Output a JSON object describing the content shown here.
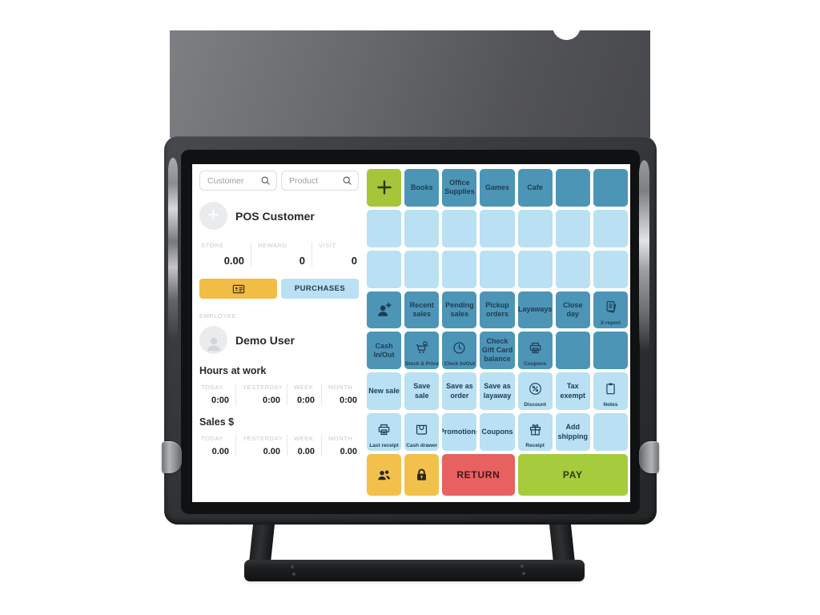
{
  "colors": {
    "dark_button": "#4d95b7",
    "light_button": "#b9e0f3",
    "green_button": "#a5c638",
    "yellow_button": "#f2c14b",
    "red_button": "#e6615f",
    "pay_button": "#a6cb3c",
    "button_text": "#1d3c50",
    "accent_orange": "#f2bd45"
  },
  "left_panel": {
    "customer_search_placeholder": "Customer",
    "product_search_placeholder": "Product",
    "customer_title": "POS Customer",
    "customer_stats": [
      {
        "label": "STORE",
        "value": "0.00"
      },
      {
        "label": "REWARD",
        "value": "0"
      },
      {
        "label": "VISIT",
        "value": "0"
      }
    ],
    "card_button_icon": "id-card-icon",
    "purchases_button_label": "PURCHASES",
    "employee_label": "EMPLOYEE",
    "employee_name": "Demo User",
    "hours_section": {
      "title": "Hours at work",
      "stats": [
        {
          "label": "TODAY",
          "value": "0:00"
        },
        {
          "label": "YESTERDAY",
          "value": "0:00"
        },
        {
          "label": "WEEK",
          "value": "0:00"
        },
        {
          "label": "MONTH",
          "value": "0:00"
        }
      ]
    },
    "sales_section": {
      "title": "Sales $",
      "stats": [
        {
          "label": "TODAY",
          "value": "0.00"
        },
        {
          "label": "YESTERDAY",
          "value": "0.00"
        },
        {
          "label": "WEEK",
          "value": "0.00"
        },
        {
          "label": "MONTH",
          "value": "0.00"
        }
      ]
    }
  },
  "button_grid": {
    "cells": [
      {
        "name": "add-item-button",
        "icon": "plus-icon",
        "variant": "green"
      },
      {
        "name": "books-button",
        "label": "Books",
        "variant": "dark"
      },
      {
        "name": "office-supplies-button",
        "label": "Office Supplies",
        "variant": "dark"
      },
      {
        "name": "games-button",
        "label": "Games",
        "variant": "dark"
      },
      {
        "name": "cafe-button",
        "label": "Cafe",
        "variant": "dark"
      },
      {
        "name": "blank-button",
        "variant": "dark"
      },
      {
        "name": "blank-button",
        "variant": "dark"
      },
      {
        "name": "blank-button",
        "variant": "light"
      },
      {
        "name": "blank-button",
        "variant": "light"
      },
      {
        "name": "blank-button",
        "variant": "light"
      },
      {
        "name": "blank-button",
        "variant": "light"
      },
      {
        "name": "blank-button",
        "variant": "light"
      },
      {
        "name": "blank-button",
        "variant": "light"
      },
      {
        "name": "blank-button",
        "variant": "light"
      },
      {
        "name": "blank-button",
        "variant": "light"
      },
      {
        "name": "blank-button",
        "variant": "light"
      },
      {
        "name": "blank-button",
        "variant": "light"
      },
      {
        "name": "blank-button",
        "variant": "light"
      },
      {
        "name": "blank-button",
        "variant": "light"
      },
      {
        "name": "blank-button",
        "variant": "light"
      },
      {
        "name": "blank-button",
        "variant": "light"
      },
      {
        "name": "add-customer-button",
        "icon": "person-plus-icon",
        "variant": "dark"
      },
      {
        "name": "recent-sales-button",
        "label": "Recent sales",
        "variant": "dark"
      },
      {
        "name": "pending-sales-button",
        "label": "Pending sales",
        "variant": "dark"
      },
      {
        "name": "pickup-orders-button",
        "label": "Pickup orders",
        "variant": "dark"
      },
      {
        "name": "layaways-button",
        "label": "Layaways",
        "variant": "dark"
      },
      {
        "name": "close-day-button",
        "label": "Close day",
        "variant": "dark"
      },
      {
        "name": "x-report-button",
        "icon": "report-icon",
        "caption": "X-report",
        "variant": "dark"
      },
      {
        "name": "cash-in-out-button",
        "label": "Cash In/Out",
        "variant": "dark"
      },
      {
        "name": "stock-and-price-button",
        "icon": "cart-search-icon",
        "caption": "Stock & Price",
        "variant": "dark"
      },
      {
        "name": "clock-in-out-button",
        "icon": "clock-icon",
        "caption": "Clock In/Out",
        "variant": "dark"
      },
      {
        "name": "check-gift-card-balance-button",
        "label": "Check Gift Card balance",
        "variant": "dark"
      },
      {
        "name": "coupons-print-button",
        "icon": "printer-icon",
        "caption": "Coupons",
        "variant": "dark"
      },
      {
        "name": "blank-button",
        "variant": "dark"
      },
      {
        "name": "blank-button",
        "variant": "dark"
      },
      {
        "name": "new-sale-button",
        "label": "New sale",
        "variant": "light"
      },
      {
        "name": "save-sale-button",
        "label": "Save sale",
        "variant": "light"
      },
      {
        "name": "save-as-order-button",
        "label": "Save as order",
        "variant": "light"
      },
      {
        "name": "save-as-layaway-button",
        "label": "Save as layaway",
        "variant": "light"
      },
      {
        "name": "discount-button",
        "icon": "discount-icon",
        "caption": "Discount",
        "variant": "light"
      },
      {
        "name": "tax-exempt-button",
        "label": "Tax exempt",
        "variant": "light"
      },
      {
        "name": "notes-button",
        "icon": "clipboard-icon",
        "caption": "Notes",
        "variant": "light"
      },
      {
        "name": "last-receipt-button",
        "icon": "printer-icon",
        "caption": "Last receipt",
        "variant": "light"
      },
      {
        "name": "cash-drawer-button",
        "icon": "drawer-icon",
        "caption": "Cash drawer",
        "variant": "light"
      },
      {
        "name": "promotions-button",
        "label": "Promotions",
        "variant": "light"
      },
      {
        "name": "coupons-button",
        "label": "Coupons",
        "variant": "light"
      },
      {
        "name": "receipt-button",
        "icon": "gift-icon",
        "caption": "Receipt",
        "variant": "light"
      },
      {
        "name": "add-shipping-button",
        "label": "Add shipping",
        "variant": "light"
      },
      {
        "name": "blank-button",
        "variant": "light"
      },
      {
        "name": "customers-button",
        "icon": "customers-icon",
        "variant": "yellow"
      },
      {
        "name": "lock-button",
        "icon": "lock-icon",
        "variant": "yellow"
      },
      {
        "name": "return-button",
        "label": "RETURN",
        "variant": "red",
        "span": 2
      },
      {
        "name": "pay-button",
        "label": "PAY",
        "variant": "pay",
        "span": 3
      }
    ]
  }
}
